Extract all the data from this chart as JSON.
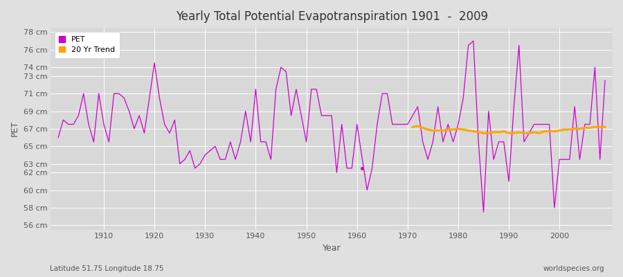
{
  "title": "Yearly Total Potential Evapotranspiration 1901  -  2009",
  "xlabel": "Year",
  "ylabel": "PET",
  "subtitle_lat_lon": "Latitude 51.75 Longitude 18.75",
  "watermark": "worldspecies.org",
  "pet_color": "#CC00CC",
  "trend_color": "#FFA500",
  "background_color": "#E0E0E0",
  "plot_bg_color": "#D8D8D8",
  "ylim": [
    55.5,
    78.5
  ],
  "xlim": [
    1899.5,
    2010.5
  ],
  "ytick_labels": [
    "56 cm",
    "58 cm",
    "60 cm",
    "62 cm",
    "63 cm",
    "65 cm",
    "67 cm",
    "69 cm",
    "71 cm",
    "73 cm",
    "74 cm",
    "76 cm",
    "78 cm"
  ],
  "ytick_values": [
    56,
    58,
    60,
    62,
    63,
    65,
    67,
    69,
    71,
    73,
    74,
    76,
    78
  ],
  "xtick_values": [
    1910,
    1920,
    1930,
    1940,
    1950,
    1960,
    1970,
    1980,
    1990,
    2000
  ],
  "years": [
    1901,
    1902,
    1903,
    1904,
    1905,
    1906,
    1907,
    1908,
    1909,
    1910,
    1911,
    1912,
    1913,
    1914,
    1915,
    1916,
    1917,
    1918,
    1919,
    1920,
    1921,
    1922,
    1923,
    1924,
    1925,
    1926,
    1927,
    1928,
    1929,
    1930,
    1931,
    1932,
    1933,
    1934,
    1935,
    1936,
    1937,
    1938,
    1939,
    1940,
    1941,
    1942,
    1943,
    1944,
    1945,
    1946,
    1947,
    1948,
    1949,
    1950,
    1951,
    1952,
    1953,
    1954,
    1955,
    1956,
    1957,
    1958,
    1959,
    1960,
    1962,
    1963,
    1964,
    1965,
    1966,
    1967,
    1968,
    1969,
    1970,
    1971,
    1972,
    1973,
    1974,
    1975,
    1976,
    1977,
    1978,
    1979,
    1980,
    1981,
    1982,
    1983,
    1984,
    1985,
    1986,
    1987,
    1988,
    1989,
    1990,
    1991,
    1992,
    1993,
    1994,
    1995,
    1996,
    1997,
    1998,
    1999,
    2000,
    2001,
    2002,
    2003,
    2004,
    2005,
    2006,
    2007,
    2008,
    2009
  ],
  "pet_values": [
    66.0,
    68.0,
    67.5,
    67.5,
    68.5,
    71.0,
    67.5,
    65.5,
    71.0,
    67.5,
    65.5,
    71.0,
    71.0,
    70.5,
    69.0,
    67.0,
    68.5,
    66.5,
    70.5,
    74.5,
    70.5,
    67.5,
    66.5,
    68.0,
    63.0,
    63.5,
    64.5,
    62.5,
    63.0,
    64.0,
    64.5,
    65.0,
    63.5,
    63.5,
    65.5,
    63.5,
    65.5,
    69.0,
    65.5,
    71.5,
    65.5,
    65.5,
    63.5,
    71.5,
    74.0,
    73.5,
    68.5,
    71.5,
    68.5,
    65.5,
    71.5,
    71.5,
    68.5,
    68.5,
    68.5,
    62.0,
    67.5,
    62.5,
    62.5,
    67.5,
    60.0,
    62.5,
    67.5,
    71.0,
    71.0,
    67.5,
    67.5,
    67.5,
    67.5,
    68.5,
    69.5,
    65.5,
    63.5,
    65.5,
    69.5,
    65.5,
    67.5,
    65.5,
    67.5,
    70.5,
    76.5,
    77.0,
    65.5,
    57.5,
    69.0,
    63.5,
    65.5,
    65.5,
    61.0,
    69.5,
    76.5,
    65.5,
    66.5,
    67.5,
    67.5,
    67.5,
    67.5,
    58.0,
    63.5,
    63.5,
    63.5,
    69.5,
    63.5,
    67.5,
    67.5,
    74.0,
    63.5,
    72.5
  ],
  "dot_year": 1961,
  "dot_value": 62.5,
  "trend_years": [
    1971,
    1972,
    1973,
    1974,
    1975,
    1976,
    1977,
    1978,
    1979,
    1980,
    1981,
    1982,
    1983,
    1984,
    1985,
    1986,
    1987,
    1988,
    1989,
    1990,
    1991,
    1992,
    1993,
    1994,
    1995,
    1996,
    1997,
    1998,
    1999,
    2000,
    2001,
    2002,
    2003,
    2004,
    2005,
    2006,
    2007,
    2008,
    2009
  ],
  "trend_values": [
    67.2,
    67.3,
    67.1,
    66.9,
    66.8,
    66.8,
    66.8,
    66.9,
    66.9,
    67.0,
    66.9,
    66.8,
    66.7,
    66.6,
    66.5,
    66.5,
    66.6,
    66.6,
    66.7,
    66.5,
    66.5,
    66.6,
    66.5,
    66.5,
    66.6,
    66.5,
    66.7,
    66.7,
    66.7,
    66.8,
    66.9,
    66.9,
    67.0,
    67.0,
    67.1,
    67.1,
    67.2,
    67.2,
    67.2
  ]
}
